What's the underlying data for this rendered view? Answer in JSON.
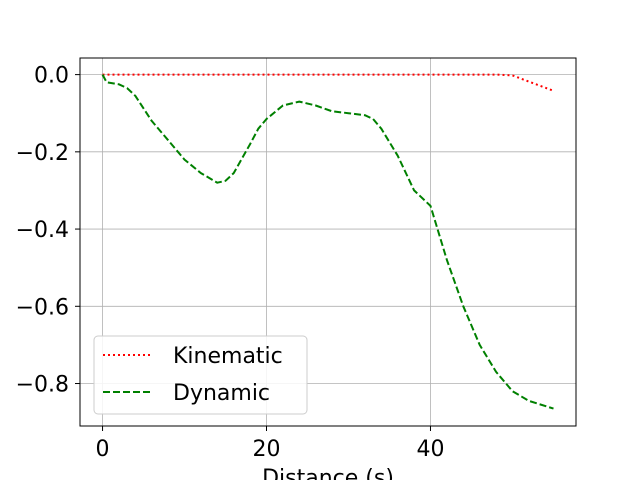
{
  "chart_data": {
    "type": "line",
    "title": "",
    "xlabel": "Distance (s)",
    "ylabel": "",
    "xlim": [
      -2.75,
      57.75
    ],
    "ylim": [
      -0.91,
      0.043
    ],
    "xticks": [
      0,
      20,
      40
    ],
    "xtick_labels": [
      "0",
      "20",
      "40"
    ],
    "yticks": [
      0.0,
      -0.2,
      -0.4,
      -0.6,
      -0.8
    ],
    "ytick_labels": [
      "0.0",
      "−0.2",
      "−0.4",
      "−0.6",
      "−0.8"
    ],
    "grid": true,
    "legend_position": "lower-left",
    "series": [
      {
        "name": "Kinematic",
        "color": "#ff0000",
        "linestyle": "dotted",
        "x": [
          0,
          5,
          10,
          15,
          20,
          25,
          30,
          35,
          40,
          45,
          48,
          50,
          52,
          54,
          55
        ],
        "y": [
          0,
          0,
          0,
          0,
          0,
          0,
          0,
          0,
          0,
          0,
          0,
          -0.002,
          -0.018,
          -0.034,
          -0.042
        ]
      },
      {
        "name": "Dynamic",
        "color": "#008000",
        "linestyle": "dashed",
        "x": [
          0,
          0.5,
          2,
          3,
          4,
          6,
          8,
          10,
          12,
          14,
          15,
          16,
          18,
          19,
          20,
          22,
          24,
          26,
          28,
          30,
          32,
          33,
          34,
          36,
          38,
          40,
          42,
          44,
          46,
          48,
          50,
          52,
          55
        ],
        "y": [
          0.0,
          -0.02,
          -0.025,
          -0.035,
          -0.055,
          -0.12,
          -0.17,
          -0.22,
          -0.255,
          -0.28,
          -0.275,
          -0.255,
          -0.18,
          -0.14,
          -0.115,
          -0.08,
          -0.07,
          -0.08,
          -0.095,
          -0.1,
          -0.105,
          -0.115,
          -0.14,
          -0.21,
          -0.3,
          -0.34,
          -0.48,
          -0.6,
          -0.7,
          -0.77,
          -0.82,
          -0.845,
          -0.865
        ]
      }
    ]
  }
}
